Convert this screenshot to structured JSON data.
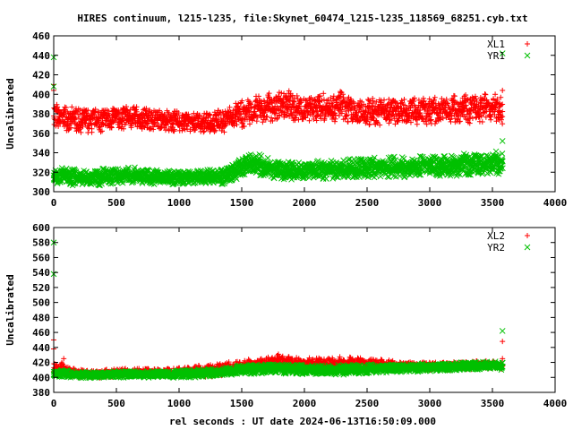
{
  "title": "HIRES continuum, l215-l235, file:Skynet_60474_l215-l235_118569_68251.cyb.txt",
  "xlabel": "rel seconds : UT date 2024-06-13T16:50:09.000",
  "colors": {
    "series1": "#ff0000",
    "series2": "#00c000",
    "axis": "#000000"
  },
  "chart_data": [
    {
      "type": "scatter",
      "ylabel": "Uncalibrated",
      "xlim": [
        0,
        4000
      ],
      "ylim": [
        300,
        460
      ],
      "xticks": [
        "0",
        "500",
        "1000",
        "1500",
        "2000",
        "2500",
        "3000",
        "3500",
        "4000"
      ],
      "yticks": [
        "300",
        "320",
        "340",
        "360",
        "380",
        "400",
        "420",
        "440",
        "460"
      ],
      "legend_position": "top-right",
      "series": [
        {
          "name": "XL1",
          "marker": "+",
          "x": [
            0,
            50,
            150,
            300,
            450,
            600,
            800,
            1000,
            1200,
            1350,
            1500,
            1650,
            1800,
            1850,
            2000,
            2150,
            2300,
            2400,
            2500,
            2700,
            2900,
            3100,
            3300,
            3450,
            3550,
            3580
          ],
          "y": [
            378,
            377,
            374,
            373,
            375,
            377,
            374,
            372,
            371,
            373,
            380,
            385,
            388,
            390,
            384,
            386,
            388,
            380,
            382,
            383,
            382,
            384,
            385,
            387,
            386,
            384
          ],
          "spread": [
            12,
            12,
            12,
            12,
            11,
            11,
            10,
            10,
            10,
            11,
            13,
            14,
            14,
            15,
            14,
            14,
            15,
            13,
            13,
            13,
            13,
            13,
            14,
            14,
            14,
            14
          ],
          "outliers": [
            [
              0,
              410
            ],
            [
              0,
              404
            ],
            [
              3580,
              404
            ]
          ]
        },
        {
          "name": "YR1",
          "marker": "x",
          "x": [
            0,
            50,
            150,
            300,
            450,
            600,
            800,
            1000,
            1200,
            1350,
            1500,
            1600,
            1700,
            1800,
            2000,
            2200,
            2400,
            2600,
            2800,
            3000,
            3200,
            3400,
            3500,
            3580
          ],
          "y": [
            316,
            317,
            315,
            314,
            316,
            317,
            315,
            314,
            315,
            316,
            325,
            330,
            324,
            322,
            322,
            323,
            324,
            325,
            325,
            326,
            327,
            328,
            330,
            329
          ],
          "spread": [
            8,
            8,
            8,
            8,
            8,
            8,
            7,
            7,
            7,
            8,
            10,
            11,
            10,
            9,
            9,
            9,
            9,
            10,
            10,
            10,
            11,
            11,
            11,
            11
          ],
          "outliers": [
            [
              0,
              438
            ],
            [
              0,
              408
            ],
            [
              3580,
              352
            ],
            [
              3580,
              442
            ]
          ]
        }
      ]
    },
    {
      "type": "scatter",
      "ylabel": "Uncalibrated",
      "xlim": [
        0,
        4000
      ],
      "ylim": [
        380,
        600
      ],
      "xticks": [
        "0",
        "500",
        "1000",
        "1500",
        "2000",
        "2500",
        "3000",
        "3500",
        "4000"
      ],
      "yticks": [
        "380",
        "400",
        "420",
        "440",
        "460",
        "480",
        "500",
        "520",
        "540",
        "560",
        "580",
        "600"
      ],
      "legend_position": "top-right",
      "series": [
        {
          "name": "XL2",
          "marker": "+",
          "x": [
            0,
            50,
            150,
            300,
            500,
            700,
            900,
            1100,
            1300,
            1500,
            1650,
            1800,
            1900,
            2000,
            2200,
            2400,
            2500,
            2700,
            2900,
            3100,
            3300,
            3450,
            3580
          ],
          "y": [
            410,
            412,
            406,
            404,
            406,
            407,
            406,
            408,
            410,
            415,
            418,
            422,
            420,
            418,
            418,
            420,
            418,
            416,
            415,
            415,
            416,
            417,
            416
          ],
          "spread": [
            8,
            8,
            6,
            5,
            5,
            5,
            5,
            7,
            8,
            8,
            8,
            9,
            8,
            8,
            8,
            8,
            7,
            6,
            5,
            5,
            5,
            5,
            5
          ],
          "outliers": [
            [
              0,
              450
            ],
            [
              0,
              438
            ],
            [
              80,
              425
            ],
            [
              3580,
              448
            ],
            [
              3580,
              425
            ]
          ]
        },
        {
          "name": "YR2",
          "marker": "x",
          "x": [
            0,
            50,
            150,
            300,
            500,
            700,
            900,
            1100,
            1300,
            1500,
            1700,
            1900,
            2100,
            2300,
            2500,
            2700,
            2900,
            3100,
            3300,
            3500,
            3580
          ],
          "y": [
            405,
            406,
            404,
            403,
            404,
            404,
            404,
            405,
            407,
            410,
            412,
            411,
            410,
            410,
            411,
            412,
            413,
            414,
            415,
            416,
            415
          ],
          "spread": [
            5,
            5,
            4,
            4,
            4,
            4,
            4,
            5,
            5,
            6,
            6,
            6,
            6,
            6,
            6,
            5,
            5,
            5,
            5,
            5,
            5
          ],
          "outliers": [
            [
              0,
              580
            ],
            [
              0,
              538
            ],
            [
              3580,
              462
            ]
          ]
        }
      ]
    }
  ]
}
